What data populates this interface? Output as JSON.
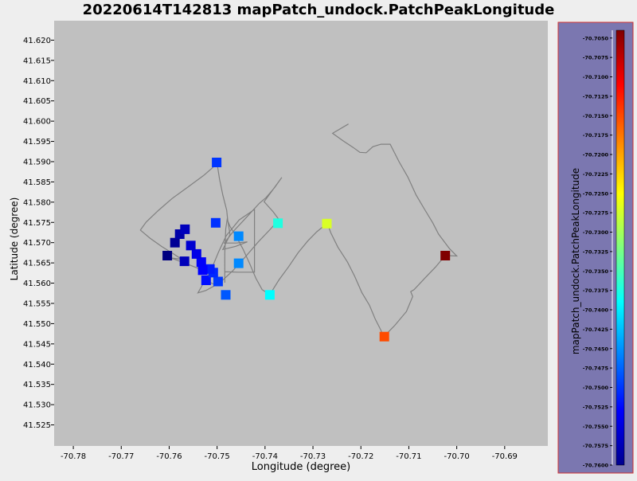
{
  "chart_data": {
    "type": "scatter",
    "title": "20220614T142813 mapPatch_undock.PatchPeakLongitude",
    "xlabel": "Longitude (degree)",
    "ylabel": "Latitude (degree)",
    "xlim": [
      -70.784,
      -70.681
    ],
    "ylim": [
      41.5198,
      41.6248
    ],
    "x_ticks": [
      -70.78,
      -70.77,
      -70.76,
      -70.75,
      -70.74,
      -70.73,
      -70.72,
      -70.71,
      -70.7,
      -70.69
    ],
    "x_tick_labels": [
      "-70.78",
      "-70.77",
      "-70.76",
      "-70.75",
      "-70.74",
      "-70.73",
      "-70.72",
      "-70.71",
      "-70.70",
      "-70.69"
    ],
    "y_ticks": [
      41.525,
      41.53,
      41.535,
      41.54,
      41.545,
      41.55,
      41.555,
      41.56,
      41.565,
      41.57,
      41.575,
      41.58,
      41.585,
      41.59,
      41.595,
      41.6,
      41.605,
      41.61,
      41.615,
      41.62
    ],
    "y_tick_labels": [
      "41.525",
      "41.530",
      "41.535",
      "41.540",
      "41.545",
      "41.550",
      "41.555",
      "41.560",
      "41.565",
      "41.570",
      "41.575",
      "41.580",
      "41.585",
      "41.590",
      "41.595",
      "41.600",
      "41.605",
      "41.610",
      "41.615",
      "41.620"
    ],
    "grid": false,
    "plot_background": "#c0c0c0",
    "track_color": "#808080",
    "track": [
      [
        -70.7226,
        41.5993
      ],
      [
        -70.7259,
        41.597
      ],
      [
        -70.7238,
        41.5952
      ],
      [
        -70.7216,
        41.5935
      ],
      [
        -70.7202,
        41.5923
      ],
      [
        -70.7189,
        41.5922
      ],
      [
        -70.7175,
        41.5937
      ],
      [
        -70.7158,
        41.5943
      ],
      [
        -70.7139,
        41.5943
      ],
      [
        -70.712,
        41.5899
      ],
      [
        -70.7102,
        41.5862
      ],
      [
        -70.7085,
        41.5818
      ],
      [
        -70.7068,
        41.5784
      ],
      [
        -70.705,
        41.5749
      ],
      [
        -70.7038,
        41.5721
      ],
      [
        -70.7015,
        41.5685
      ],
      [
        -70.7,
        41.5667
      ],
      [
        -70.7016,
        41.5668
      ],
      [
        -70.7025,
        41.5667
      ],
      [
        -70.7044,
        41.564
      ],
      [
        -70.7066,
        41.5613
      ],
      [
        -70.7089,
        41.5584
      ],
      [
        -70.7096,
        41.5579
      ],
      [
        -70.7092,
        41.5567
      ],
      [
        -70.7105,
        41.553
      ],
      [
        -70.7129,
        41.5496
      ],
      [
        -70.7152,
        41.5468
      ],
      [
        -70.716,
        41.5488
      ],
      [
        -70.717,
        41.5511
      ],
      [
        -70.7182,
        41.5545
      ],
      [
        -70.7198,
        41.5577
      ],
      [
        -70.7213,
        41.5617
      ],
      [
        -70.7228,
        41.5652
      ],
      [
        -70.7248,
        41.5689
      ],
      [
        -70.7263,
        41.5725
      ],
      [
        -70.727,
        41.5748
      ],
      [
        -70.7292,
        41.5727
      ],
      [
        -70.7311,
        41.5704
      ],
      [
        -70.7331,
        41.5675
      ],
      [
        -70.7351,
        41.564
      ],
      [
        -70.7371,
        41.5608
      ],
      [
        -70.739,
        41.5572
      ],
      [
        -70.7406,
        41.5584
      ],
      [
        -70.7419,
        41.5612
      ],
      [
        -70.7432,
        41.5648
      ],
      [
        -70.7446,
        41.5684
      ],
      [
        -70.746,
        41.5715
      ],
      [
        -70.7473,
        41.574
      ],
      [
        -70.7479,
        41.5757
      ],
      [
        -70.7482,
        41.5734
      ],
      [
        -70.7484,
        41.5673
      ],
      [
        -70.7484,
        41.5601
      ],
      [
        -70.7484,
        41.5628
      ],
      [
        -70.7455,
        41.5627
      ],
      [
        -70.7422,
        41.5627
      ],
      [
        -70.7422,
        41.5675
      ],
      [
        -70.7422,
        41.5722
      ],
      [
        -70.7422,
        41.5782
      ],
      [
        -70.7454,
        41.5756
      ],
      [
        -70.7481,
        41.5717
      ],
      [
        -70.7497,
        41.5677
      ],
      [
        -70.7512,
        41.5634
      ],
      [
        -70.7528,
        41.5601
      ],
      [
        -70.754,
        41.5576
      ],
      [
        -70.7523,
        41.5582
      ],
      [
        -70.7494,
        41.5601
      ],
      [
        -70.7467,
        41.5631
      ],
      [
        -70.7441,
        41.5665
      ],
      [
        -70.7414,
        41.5702
      ],
      [
        -70.7389,
        41.5733
      ],
      [
        -70.7371,
        41.5757
      ],
      [
        -70.7383,
        41.5776
      ],
      [
        -70.7402,
        41.5801
      ],
      [
        -70.7386,
        41.5827
      ],
      [
        -70.7365,
        41.5861
      ],
      [
        -70.738,
        41.5836
      ],
      [
        -70.7398,
        41.5811
      ],
      [
        -70.7412,
        41.5797
      ],
      [
        -70.744,
        41.5761
      ],
      [
        -70.7466,
        41.5728
      ],
      [
        -70.7485,
        41.5699
      ],
      [
        -70.746,
        41.5699
      ],
      [
        -70.7437,
        41.5702
      ],
      [
        -70.7461,
        41.5691
      ],
      [
        -70.7488,
        41.5683
      ],
      [
        -70.7473,
        41.572
      ],
      [
        -70.7478,
        41.5757
      ],
      [
        -70.748,
        41.578
      ],
      [
        -70.7488,
        41.5817
      ],
      [
        -70.7495,
        41.5857
      ],
      [
        -70.75,
        41.5895
      ],
      [
        -70.7527,
        41.5867
      ],
      [
        -70.756,
        41.5838
      ],
      [
        -70.7594,
        41.5809
      ],
      [
        -70.7622,
        41.578
      ],
      [
        -70.7648,
        41.5751
      ],
      [
        -70.766,
        41.5731
      ],
      [
        -70.764,
        41.5711
      ],
      [
        -70.7615,
        41.569
      ],
      [
        -70.7592,
        41.5673
      ],
      [
        -70.7574,
        41.5659
      ],
      [
        -70.7596,
        41.5662
      ],
      [
        -70.7571,
        41.5651
      ],
      [
        -70.7547,
        41.564
      ],
      [
        -70.7526,
        41.5631
      ],
      [
        -70.75,
        41.562
      ],
      [
        -70.7528,
        41.561
      ],
      [
        -70.7508,
        41.5598
      ]
    ],
    "points": [
      {
        "x": -70.7501,
        "y": 41.5898,
        "value": -70.7501
      },
      {
        "x": -70.7503,
        "y": 41.5749,
        "value": -70.7503
      },
      {
        "x": -70.7455,
        "y": 41.5716,
        "value": -70.7455
      },
      {
        "x": -70.7373,
        "y": 41.5748,
        "value": -70.7373
      },
      {
        "x": -70.7271,
        "y": 41.5747,
        "value": -70.7271
      },
      {
        "x": -70.7024,
        "y": 41.5668,
        "value": -70.7024
      },
      {
        "x": -70.7151,
        "y": 41.5468,
        "value": -70.7151
      },
      {
        "x": -70.739,
        "y": 41.5571,
        "value": -70.739
      },
      {
        "x": -70.7482,
        "y": 41.5571,
        "value": -70.7482
      },
      {
        "x": -70.7455,
        "y": 41.5649,
        "value": -70.7455
      },
      {
        "x": -70.7498,
        "y": 41.5604,
        "value": -70.7498
      },
      {
        "x": -70.7523,
        "y": 41.5607,
        "value": -70.7523
      },
      {
        "x": -70.7508,
        "y": 41.5626,
        "value": -70.7508
      },
      {
        "x": -70.7515,
        "y": 41.5635,
        "value": -70.7515
      },
      {
        "x": -70.753,
        "y": 41.5632,
        "value": -70.753
      },
      {
        "x": -70.7533,
        "y": 41.5652,
        "value": -70.7533
      },
      {
        "x": -70.7543,
        "y": 41.5672,
        "value": -70.7543
      },
      {
        "x": -70.7555,
        "y": 41.5693,
        "value": -70.7555
      },
      {
        "x": -70.7568,
        "y": 41.5654,
        "value": -70.7568
      },
      {
        "x": -70.7604,
        "y": 41.5668,
        "value": -70.7604
      },
      {
        "x": -70.7588,
        "y": 41.57,
        "value": -70.7588
      },
      {
        "x": -70.7578,
        "y": 41.5721,
        "value": -70.7578
      },
      {
        "x": -70.7567,
        "y": 41.5733,
        "value": -70.7567
      }
    ],
    "colorbar": {
      "label": "mapPatch_undock.PatchPeakLongitude",
      "colormap": "jet",
      "range": [
        -70.76,
        -70.704
      ],
      "ticks": [
        -70.76,
        -70.7575,
        -70.755,
        -70.7525,
        -70.75,
        -70.7475,
        -70.745,
        -70.7425,
        -70.74,
        -70.7375,
        -70.735,
        -70.7325,
        -70.73,
        -70.7275,
        -70.725,
        -70.7225,
        -70.72,
        -70.7175,
        -70.715,
        -70.7125,
        -70.71,
        -70.7075,
        -70.705
      ],
      "tick_labels": [
        "-70.7600",
        "-70.7575",
        "-70.7550",
        "-70.7525",
        "-70.7500",
        "-70.7475",
        "-70.7450",
        "-70.7425",
        "-70.7400",
        "-70.7375",
        "-70.7350",
        "-70.7325",
        "-70.7300",
        "-70.7275",
        "-70.7250",
        "-70.7225",
        "-70.7200",
        "-70.7175",
        "-70.7150",
        "-70.7125",
        "-70.7100",
        "-70.7075",
        "-70.7050"
      ],
      "panel_background": "#7b77b0",
      "panel_border": "#d03030"
    }
  }
}
